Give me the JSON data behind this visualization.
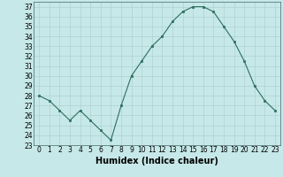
{
  "x": [
    0,
    1,
    2,
    3,
    4,
    5,
    6,
    7,
    8,
    9,
    10,
    11,
    12,
    13,
    14,
    15,
    16,
    17,
    18,
    19,
    20,
    21,
    22,
    23
  ],
  "y": [
    28,
    27.5,
    26.5,
    25.5,
    26.5,
    25.5,
    24.5,
    23.5,
    27,
    30,
    31.5,
    33,
    34,
    35.5,
    36.5,
    37,
    37,
    36.5,
    35,
    33.5,
    31.5,
    29,
    27.5,
    26.5
  ],
  "line_color": "#2d6e5e",
  "marker": "s",
  "marker_size": 2,
  "bg_color": "#c6e8e8",
  "grid_color": "#aacccc",
  "xlabel": "Humidex (Indice chaleur)",
  "xlabel_fontsize": 7,
  "ylim": [
    23,
    37.5
  ],
  "xlim": [
    -0.5,
    23.5
  ],
  "yticks": [
    23,
    24,
    25,
    26,
    27,
    28,
    29,
    30,
    31,
    32,
    33,
    34,
    35,
    36,
    37
  ],
  "xticks": [
    0,
    1,
    2,
    3,
    4,
    5,
    6,
    7,
    8,
    9,
    10,
    11,
    12,
    13,
    14,
    15,
    16,
    17,
    18,
    19,
    20,
    21,
    22,
    23
  ],
  "tick_fontsize": 5.5,
  "linewidth": 0.8
}
